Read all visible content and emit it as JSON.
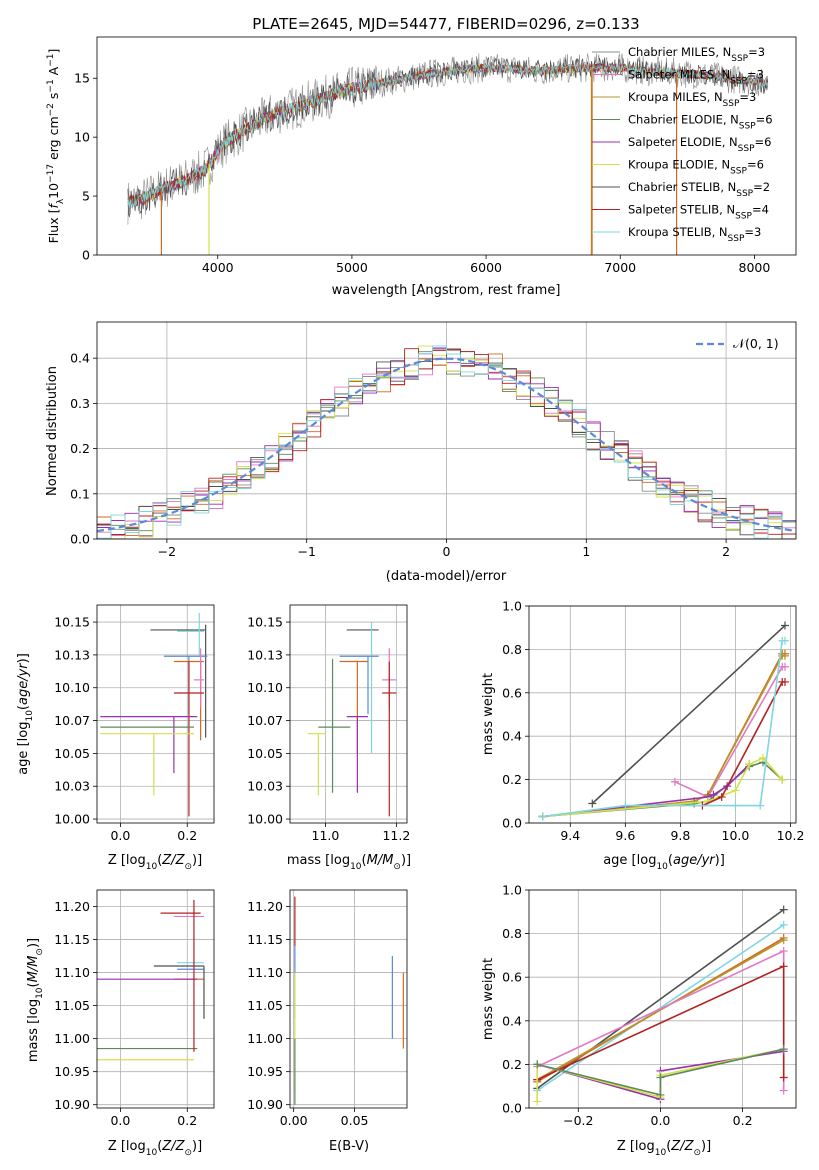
{
  "figure": {
    "title": "PLATE=2645, MJD=54477, FIBERID=0296, z=0.133"
  },
  "chart_data": [
    {
      "id": "spectrum",
      "type": "line",
      "title": "PLATE=2645, MJD=54477, FIBERID=0296, z=0.133",
      "xlabel": "wavelength [Angstrom, rest frame]",
      "ylabel": "Flux [f_λ 10^-17 erg cm^-2 s^-1 A^-1]",
      "xlim": [
        3100,
        8310
      ],
      "ylim": [
        0,
        18.5
      ],
      "xticks": [
        4000,
        5000,
        6000,
        7000,
        8000
      ],
      "yticks": [
        0,
        5,
        10,
        15
      ],
      "grid": false,
      "legend_position": "top-right",
      "series": [
        {
          "name": "Chabrier MILES, N_SSP=3",
          "color": "#8c8c8c"
        },
        {
          "name": "Salpeter MILES, N_SSP=3",
          "color": "#e377c2"
        },
        {
          "name": "Kroupa MILES, N_SSP=3",
          "color": "#b5962b"
        },
        {
          "name": "Chabrier ELODIE, N_SSP=6",
          "color": "#5b8a5b"
        },
        {
          "name": "Salpeter ELODIE, N_SSP=6",
          "color": "#9a2fb0"
        },
        {
          "name": "Kroupa ELODIE, N_SSP=6",
          "color": "#d4e04a"
        },
        {
          "name": "Chabrier STELIB, N_SSP=2",
          "color": "#505050"
        },
        {
          "name": "Salpeter STELIB, N_SSP=4",
          "color": "#b22222"
        },
        {
          "name": "Kroupa STELIB, N_SSP=3",
          "color": "#7fd6e0"
        }
      ],
      "spectrum_shape": {
        "x": [
          3330,
          3450,
          3600,
          3750,
          3900,
          4050,
          4200,
          4400,
          4600,
          4800,
          5000,
          5200,
          5400,
          5600,
          5800,
          6000,
          6200,
          6400,
          6600,
          6800,
          7000,
          7200,
          7400,
          7600,
          7800,
          8000,
          8100
        ],
        "y": [
          4.5,
          4.8,
          5.7,
          6.3,
          7.2,
          9.5,
          10.6,
          11.9,
          12.6,
          13.4,
          14.1,
          14.6,
          15.0,
          15.4,
          15.7,
          15.9,
          15.8,
          15.6,
          15.8,
          15.9,
          15.9,
          15.6,
          15.5,
          15.3,
          15.0,
          14.7,
          14.5
        ]
      },
      "drops": [
        {
          "x": 3580,
          "color": "#d2691e"
        },
        {
          "x": 3935,
          "color": "#d4e04a"
        },
        {
          "x": 6785,
          "color": "#b5962b"
        },
        {
          "x": 6790,
          "color": "#d2691e"
        },
        {
          "x": 7420,
          "color": "#d2691e"
        }
      ]
    },
    {
      "id": "residuals",
      "type": "line",
      "xlabel": "(data-model)/error",
      "ylabel": "Normed distribution",
      "xlim": [
        -2.5,
        2.5
      ],
      "ylim": [
        0,
        0.48
      ],
      "xticks": [
        -2,
        -1,
        0,
        1,
        2
      ],
      "yticks": [
        0.0,
        0.1,
        0.2,
        0.3,
        0.4
      ],
      "grid": true,
      "legend_position": "top-right",
      "legend": [
        "N(0,1)"
      ],
      "gaussian": {
        "mu": 0,
        "sigma": 1,
        "color": "#5b8ad9"
      },
      "histogram_bin_width": 0.1,
      "histogram_colors": [
        "#8c8c8c",
        "#e377c2",
        "#d2691e",
        "#5b8a5b",
        "#9a2fb0",
        "#d4e04a",
        "#505050",
        "#b22222",
        "#7fd6e0"
      ]
    },
    {
      "id": "age_vs_Z",
      "type": "scatter",
      "xlabel": "Z [log10(Z/Z⊙)]",
      "ylabel": "age [log10(age/yr)]",
      "xlim": [
        -0.07,
        0.28
      ],
      "ylim": [
        9.997,
        10.163
      ],
      "xticks": [
        0.0,
        0.2
      ],
      "yticks": [
        10.0,
        10.025,
        10.05,
        10.075,
        10.1,
        10.125,
        10.15
      ],
      "grid": true,
      "errorbars": [
        {
          "x": 0.172,
          "y": 10.144,
          "xlo": 0.09,
          "xhi": 0.255,
          "ylo": 10.144,
          "yhi": 10.144,
          "color": "#505050"
        },
        {
          "x": 0.255,
          "y": 10.13,
          "xlo": 0.255,
          "xhi": 0.255,
          "ylo": 10.062,
          "yhi": 10.148,
          "color": "#505050"
        },
        {
          "x": 0.236,
          "y": 10.143,
          "xlo": 0.17,
          "xhi": 0.25,
          "ylo": 10.124,
          "yhi": 10.157,
          "color": "#7fd6e0"
        },
        {
          "x": 0.205,
          "y": 10.124,
          "xlo": 0.13,
          "xhi": 0.26,
          "ylo": 10.08,
          "yhi": 10.124,
          "color": "#5b8ad9"
        },
        {
          "x": 0.24,
          "y": 10.12,
          "xlo": 0.16,
          "xhi": 0.25,
          "ylo": 10.06,
          "yhi": 10.12,
          "color": "#d2691e"
        },
        {
          "x": 0.24,
          "y": 10.106,
          "xlo": 0.22,
          "xhi": 0.25,
          "ylo": 10.085,
          "yhi": 10.13,
          "color": "#e377c2"
        },
        {
          "x": 0.205,
          "y": 10.096,
          "xlo": 0.16,
          "xhi": 0.25,
          "ylo": 10.002,
          "yhi": 10.12,
          "color": "#b22222"
        },
        {
          "x": 0.16,
          "y": 10.078,
          "xlo": -0.06,
          "xhi": 0.23,
          "ylo": 10.035,
          "yhi": 10.078,
          "color": "#9a2fb0"
        },
        {
          "x": 0.1,
          "y": 10.07,
          "xlo": -0.06,
          "xhi": 0.22,
          "ylo": 10.07,
          "yhi": 10.07,
          "color": "#5b8a5b"
        },
        {
          "x": 0.1,
          "y": 10.065,
          "xlo": -0.06,
          "xhi": 0.22,
          "ylo": 10.018,
          "yhi": 10.065,
          "color": "#d4e04a"
        }
      ]
    },
    {
      "id": "age_vs_mass",
      "type": "scatter",
      "xlabel": "mass [log10(M/M⊙)]",
      "ylabel": "",
      "xlim": [
        10.9,
        11.23
      ],
      "ylim": [
        9.997,
        10.163
      ],
      "xticks": [
        11.0,
        11.2
      ],
      "yticks": [
        10.0,
        10.025,
        10.05,
        10.075,
        10.1,
        10.125,
        10.15
      ],
      "grid": true,
      "errorbars": [
        {
          "x": 11.11,
          "y": 10.144,
          "xlo": 11.06,
          "xhi": 11.15,
          "ylo": 10.144,
          "yhi": 10.144,
          "color": "#505050"
        },
        {
          "x": 11.13,
          "y": 10.138,
          "xlo": 11.13,
          "xhi": 11.13,
          "ylo": 10.05,
          "yhi": 10.15,
          "color": "#7fd6e0"
        },
        {
          "x": 11.12,
          "y": 10.124,
          "xlo": 11.04,
          "xhi": 11.15,
          "ylo": 10.08,
          "yhi": 10.124,
          "color": "#5b8ad9"
        },
        {
          "x": 11.09,
          "y": 10.12,
          "xlo": 11.04,
          "xhi": 11.12,
          "ylo": 10.05,
          "yhi": 10.12,
          "color": "#d2691e"
        },
        {
          "x": 11.18,
          "y": 10.106,
          "xlo": 11.16,
          "xhi": 11.2,
          "ylo": 10.085,
          "yhi": 10.13,
          "color": "#e377c2"
        },
        {
          "x": 11.18,
          "y": 10.096,
          "xlo": 11.16,
          "xhi": 11.2,
          "ylo": 10.002,
          "yhi": 10.12,
          "color": "#b22222"
        },
        {
          "x": 11.09,
          "y": 10.078,
          "xlo": 11.06,
          "xhi": 11.12,
          "ylo": 10.02,
          "yhi": 10.078,
          "color": "#9a2fb0"
        },
        {
          "x": 11.02,
          "y": 10.07,
          "xlo": 10.98,
          "xhi": 11.07,
          "ylo": 10.02,
          "yhi": 10.122,
          "color": "#5b8a5b"
        },
        {
          "x": 10.98,
          "y": 10.065,
          "xlo": 10.95,
          "xhi": 11.0,
          "ylo": 10.018,
          "yhi": 10.065,
          "color": "#d4e04a"
        }
      ]
    },
    {
      "id": "weight_vs_age",
      "type": "line",
      "xlabel": "age [log10(age/yr)]",
      "ylabel": "mass weight",
      "xlim": [
        9.25,
        10.22
      ],
      "ylim": [
        0,
        1.0
      ],
      "xticks": [
        9.4,
        9.6,
        9.8,
        10.0,
        10.2
      ],
      "yticks": [
        0.0,
        0.2,
        0.4,
        0.6,
        0.8,
        1.0
      ],
      "grid": true,
      "series": [
        {
          "color": "#505050",
          "x": [
            9.48,
            10.18
          ],
          "y": [
            0.09,
            0.91
          ]
        },
        {
          "color": "#e377c2",
          "x": [
            9.78,
            9.9,
            10.17,
            10.18
          ],
          "y": [
            0.19,
            0.12,
            0.72,
            0.72
          ]
        },
        {
          "color": "#d2691e",
          "x": [
            9.3,
            9.85,
            9.9,
            10.17,
            10.18
          ],
          "y": [
            0.03,
            0.1,
            0.13,
            0.78,
            0.78
          ]
        },
        {
          "color": "#b5962b",
          "x": [
            9.3,
            9.85,
            9.9,
            10.17,
            10.18
          ],
          "y": [
            0.03,
            0.1,
            0.13,
            0.77,
            0.77
          ]
        },
        {
          "color": "#5b8a5b",
          "x": [
            9.3,
            9.85,
            9.9,
            10.05,
            10.1,
            10.17
          ],
          "y": [
            0.03,
            0.09,
            0.1,
            0.26,
            0.28,
            0.2
          ]
        },
        {
          "color": "#9a2fb0",
          "x": [
            9.3,
            9.9,
            9.92,
            9.97,
            10.05
          ],
          "y": [
            0.03,
            0.12,
            0.13,
            0.17,
            0.27
          ]
        },
        {
          "color": "#d4e04a",
          "x": [
            9.3,
            9.9,
            10.0,
            10.05,
            10.1,
            10.17
          ],
          "y": [
            0.03,
            0.1,
            0.15,
            0.27,
            0.3,
            0.2
          ]
        },
        {
          "color": "#b22222",
          "x": [
            9.88,
            9.95,
            10.17,
            10.18
          ],
          "y": [
            0.08,
            0.12,
            0.65,
            0.65
          ]
        },
        {
          "color": "#7fd6e0",
          "x": [
            9.3,
            9.6,
            10.0,
            10.09,
            10.17,
            10.18
          ],
          "y": [
            0.03,
            0.08,
            0.08,
            0.08,
            0.84,
            0.84
          ]
        }
      ]
    },
    {
      "id": "mass_vs_Z",
      "type": "scatter",
      "xlabel": "Z [log10(Z/Z⊙)]",
      "ylabel": "mass [log10(M/M⊙)]",
      "xlim": [
        -0.07,
        0.28
      ],
      "ylim": [
        10.895,
        11.225
      ],
      "xticks": [
        0.0,
        0.2
      ],
      "yticks": [
        10.9,
        10.95,
        11.0,
        11.05,
        11.1,
        11.15,
        11.2
      ],
      "grid": true,
      "errorbars": [
        {
          "x": 0.18,
          "y": 11.19,
          "xlo": 0.12,
          "xhi": 0.24,
          "ylo": 11.19,
          "yhi": 11.19,
          "color": "#b22222"
        },
        {
          "x": 0.22,
          "y": 11.185,
          "xlo": 0.16,
          "xhi": 0.25,
          "ylo": 11.185,
          "yhi": 11.185,
          "color": "#e377c2"
        },
        {
          "x": 0.21,
          "y": 11.115,
          "xlo": 0.17,
          "xhi": 0.25,
          "ylo": 11.115,
          "yhi": 11.115,
          "color": "#7fd6e0"
        },
        {
          "x": 0.22,
          "y": 11.11,
          "xlo": 0.1,
          "xhi": 0.25,
          "ylo": 11.11,
          "yhi": 11.11,
          "color": "#505050"
        },
        {
          "x": 0.2,
          "y": 11.105,
          "xlo": 0.17,
          "xhi": 0.25,
          "ylo": 11.105,
          "yhi": 11.105,
          "color": "#5b8ad9"
        },
        {
          "x": 0.2,
          "y": 11.09,
          "xlo": 0.16,
          "xhi": 0.25,
          "ylo": 11.09,
          "yhi": 11.09,
          "color": "#d2691e"
        },
        {
          "x": 0.1,
          "y": 11.09,
          "xlo": -0.07,
          "xhi": 0.23,
          "ylo": 11.09,
          "yhi": 11.09,
          "color": "#9a2fb0"
        },
        {
          "x": 0.1,
          "y": 10.985,
          "xlo": -0.07,
          "xhi": 0.23,
          "ylo": 10.985,
          "yhi": 10.985,
          "color": "#5b8a5b"
        },
        {
          "x": 0.1,
          "y": 10.968,
          "xlo": -0.07,
          "xhi": 0.22,
          "ylo": 10.968,
          "yhi": 10.968,
          "color": "#d4e04a"
        },
        {
          "x": 0.25,
          "y": 11.07,
          "xlo": 0.25,
          "xhi": 0.25,
          "ylo": 11.03,
          "yhi": 11.11,
          "color": "#505050"
        },
        {
          "x": 0.22,
          "y": 11.1,
          "xlo": 0.22,
          "xhi": 0.22,
          "ylo": 10.98,
          "yhi": 11.21,
          "color": "#b22222"
        }
      ]
    },
    {
      "id": "mass_vs_EBV",
      "type": "scatter",
      "xlabel": "E(B-V)",
      "ylabel": "",
      "xlim": [
        -0.003,
        0.093
      ],
      "ylim": [
        10.895,
        11.225
      ],
      "xticks": [
        0.0,
        0.05
      ],
      "yticks": [
        10.9,
        10.95,
        11.0,
        11.05,
        11.1,
        11.15,
        11.2
      ],
      "grid": true,
      "errorbars": [
        {
          "x": 0.001,
          "y": 11.18,
          "xlo": 0.001,
          "xhi": 0.001,
          "ylo": 11.14,
          "yhi": 11.215,
          "color": "#b22222"
        },
        {
          "x": 0.001,
          "y": 11.1,
          "xlo": 0.001,
          "xhi": 0.001,
          "ylo": 11.03,
          "yhi": 11.14,
          "color": "#5b8ad9"
        },
        {
          "x": 0.001,
          "y": 11.02,
          "xlo": 0.001,
          "xhi": 0.001,
          "ylo": 10.92,
          "yhi": 11.1,
          "color": "#d4e04a"
        },
        {
          "x": 0.001,
          "y": 10.98,
          "xlo": 0.001,
          "xhi": 0.001,
          "ylo": 10.9,
          "yhi": 11.0,
          "color": "#5b8a5b"
        },
        {
          "x": 0.081,
          "y": 11.06,
          "xlo": 0.081,
          "xhi": 0.081,
          "ylo": 11.0,
          "yhi": 11.125,
          "color": "#5b8ad9"
        },
        {
          "x": 0.09,
          "y": 11.04,
          "xlo": 0.09,
          "xhi": 0.09,
          "ylo": 10.985,
          "yhi": 11.1,
          "color": "#d2691e"
        }
      ]
    },
    {
      "id": "weight_vs_Z",
      "type": "line",
      "xlabel": "Z [log10(Z/Z⊙)]",
      "ylabel": "mass weight",
      "xlim": [
        -0.32,
        0.33
      ],
      "ylim": [
        0,
        1.0
      ],
      "xticks": [
        -0.2,
        0.0,
        0.2
      ],
      "yticks": [
        0.0,
        0.2,
        0.4,
        0.6,
        0.8,
        1.0
      ],
      "grid": true,
      "series": [
        {
          "color": "#505050",
          "x": [
            -0.3,
            0.3
          ],
          "y": [
            0.09,
            0.91
          ]
        },
        {
          "color": "#7fd6e0",
          "x": [
            -0.3,
            0.3
          ],
          "y": [
            0.08,
            0.84
          ]
        },
        {
          "color": "#d2691e",
          "x": [
            -0.3,
            0.3
          ],
          "y": [
            0.12,
            0.78
          ]
        },
        {
          "color": "#b5962b",
          "x": [
            -0.3,
            0.3
          ],
          "y": [
            0.13,
            0.77
          ]
        },
        {
          "color": "#e377c2",
          "x": [
            -0.3,
            0.3,
            0.3
          ],
          "y": [
            0.19,
            0.72,
            0.08
          ]
        },
        {
          "color": "#b22222",
          "x": [
            -0.3,
            0.3,
            0.3
          ],
          "y": [
            0.13,
            0.65,
            0.14
          ]
        },
        {
          "color": "#9a2fb0",
          "x": [
            -0.3,
            0.0,
            0.0,
            0.3
          ],
          "y": [
            0.2,
            0.04,
            0.17,
            0.26
          ]
        },
        {
          "color": "#d4e04a",
          "x": [
            -0.3,
            -0.3,
            0.0,
            0.0,
            0.3
          ],
          "y": [
            0.03,
            0.2,
            0.05,
            0.15,
            0.27
          ]
        },
        {
          "color": "#5b8a5b",
          "x": [
            -0.3,
            0.0,
            0.0,
            0.3
          ],
          "y": [
            0.2,
            0.06,
            0.14,
            0.27
          ]
        }
      ]
    }
  ]
}
